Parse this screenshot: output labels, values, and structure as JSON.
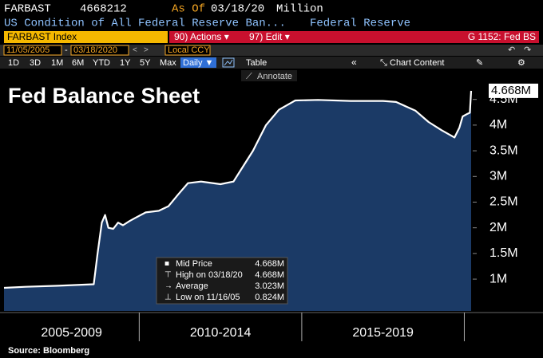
{
  "header": {
    "ticker": "FARBAST",
    "last": "4668212",
    "as_of_label": "As Of",
    "as_of_date": "03/18/20",
    "units": "Million",
    "description": "US Condition of All Federal Reserve Ban...",
    "source_name": "Federal Reserve"
  },
  "command_bar": {
    "security": "FARBAST Index",
    "actions": "90) Actions ▾",
    "edit": "97) Edit ▾",
    "page": "G 1152: Fed BS"
  },
  "range_bar": {
    "start_date": "11/05/2005",
    "separator": "-",
    "end_date": "03/18/2020",
    "currency": "Local CCY"
  },
  "toolbar": {
    "periods": [
      "1D",
      "3D",
      "1M",
      "6M",
      "YTD",
      "1Y",
      "5Y",
      "Max"
    ],
    "frequency": "Daily ▼",
    "table": "Table",
    "collapse": "«",
    "chart_content": "Chart Content",
    "annotate": "Annotate"
  },
  "chart_data": {
    "type": "area",
    "title": "Fed Balance Sheet",
    "source": "Source: Bloomberg",
    "x": [
      2005.84,
      2006.5,
      2007.5,
      2008.6,
      2008.72,
      2008.85,
      2008.95,
      2009.05,
      2009.2,
      2009.35,
      2009.5,
      2009.7,
      2009.9,
      2010.2,
      2010.6,
      2010.9,
      2011.2,
      2011.5,
      2011.9,
      2012.5,
      2012.9,
      2013.2,
      2013.5,
      2013.9,
      2014.3,
      2014.8,
      2015.5,
      2016.5,
      2017.5,
      2017.9,
      2018.5,
      2018.9,
      2019.3,
      2019.7,
      2019.85,
      2019.95,
      2020.1,
      2020.17,
      2020.21
    ],
    "series": [
      {
        "name": "Mid Price",
        "color": "#ffffff",
        "fill": "#1b3a66",
        "values": [
          0.83,
          0.85,
          0.87,
          0.9,
          1.5,
          2.1,
          2.25,
          2.0,
          1.98,
          2.1,
          2.05,
          2.13,
          2.2,
          2.3,
          2.33,
          2.42,
          2.65,
          2.87,
          2.9,
          2.85,
          2.9,
          3.2,
          3.5,
          4.0,
          4.3,
          4.48,
          4.49,
          4.47,
          4.47,
          4.45,
          4.28,
          4.06,
          3.9,
          3.76,
          3.95,
          4.17,
          4.22,
          4.24,
          4.668
        ]
      }
    ],
    "last_value_label": "4.668M",
    "xlim": [
      2005.84,
      2020.21
    ],
    "period_breaks": [
      2010,
      2015,
      2020
    ],
    "period_labels": [
      "2005-2009",
      "2010-2014",
      "2015-2019"
    ],
    "ylim": [
      0.38,
      5.07
    ],
    "yticks": [
      {
        "value": 1,
        "label": "1M"
      },
      {
        "value": 1.5,
        "label": "1.5M"
      },
      {
        "value": 2,
        "label": "2M"
      },
      {
        "value": 2.5,
        "label": "2.5M"
      },
      {
        "value": 3,
        "label": "3M"
      },
      {
        "value": 3.5,
        "label": "3.5M"
      },
      {
        "value": 4,
        "label": "4M"
      },
      {
        "value": 4.5,
        "label": "4.5M"
      }
    ],
    "stats": {
      "labels": [
        "Mid Price",
        "High on 03/18/20",
        "Average",
        "Low on 11/16/05"
      ],
      "value_labels": [
        "4.668M",
        "4.668M",
        "3.023M",
        "0.824M"
      ]
    }
  }
}
